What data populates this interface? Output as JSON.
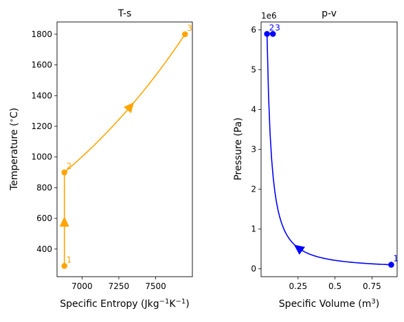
{
  "chart_data": [
    {
      "type": "line",
      "title": "T-s",
      "xlabel": {
        "main": "Specific Entropy (Jkg",
        "sup1": "−1",
        "mid": "K",
        "sup2": "−1",
        "end": ")"
      },
      "ylabel": {
        "main": "Temperature (",
        "sup": "∘",
        "end": "C)"
      },
      "xlim": [
        6830,
        7750
      ],
      "ylim": [
        220,
        1880
      ],
      "xticks": [
        7000,
        7250,
        7500
      ],
      "yticks": [
        400,
        600,
        800,
        1000,
        1200,
        1400,
        1600,
        1800
      ],
      "color": "#FFA500",
      "grid": false,
      "points": [
        {
          "label": "1",
          "x": 6880,
          "y": 290
        },
        {
          "label": "2",
          "x": 6880,
          "y": 900
        },
        {
          "label": "3",
          "x": 7700,
          "y": 1800
        }
      ],
      "segments": [
        {
          "from": "1",
          "to": "2",
          "shape": "straight",
          "arrow_at": 0.47
        },
        {
          "from": "2",
          "to": "3",
          "shape": "isobar",
          "arrow_at": 0.55
        }
      ]
    },
    {
      "type": "line",
      "title": "p-v",
      "xlabel": {
        "main": "Specific Volume (m",
        "sup": "3",
        "end": ")"
      },
      "ylabel": {
        "main": "Pressure (Pa)"
      },
      "offset_text": "1e6",
      "xlim": [
        0.0,
        0.92
      ],
      "ylim": [
        -0.2,
        6.2
      ],
      "xticks": [
        0.25,
        0.5,
        0.75
      ],
      "yticks": [
        0,
        1,
        2,
        3,
        4,
        5,
        6
      ],
      "color": "#0000FF",
      "grid": false,
      "points": [
        {
          "label": "1",
          "x": 0.88,
          "y": 0.1
        },
        {
          "label": "2",
          "x": 0.04,
          "y": 5.9
        },
        {
          "label": "3",
          "x": 0.08,
          "y": 5.9
        }
      ],
      "segments": [
        {
          "from": "1",
          "to": "2",
          "shape": "isentrope",
          "arrow_at": 0.75
        },
        {
          "from": "2",
          "to": "3",
          "shape": "straight"
        }
      ]
    }
  ]
}
